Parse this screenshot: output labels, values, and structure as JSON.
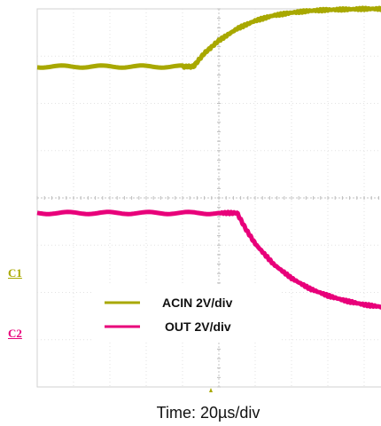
{
  "chart_data": {
    "type": "line",
    "xlabel": "Time: 20µs/div",
    "x_units_per_div": 20,
    "x_unit": "µs",
    "divisions": {
      "x": 10,
      "y": 8
    },
    "grid": true,
    "legend_position": "bottom-center",
    "channels": [
      {
        "id": "C1",
        "color": "#a8a800"
      },
      {
        "id": "C2",
        "color": "#e8007a"
      }
    ],
    "series": [
      {
        "name": "ACIN 2V/div",
        "channel": "C1",
        "color": "#a8a800",
        "volts_per_div": 2,
        "x_div": [
          0,
          1,
          2,
          3,
          4,
          4.3,
          4.6,
          5,
          5.5,
          6,
          6.5,
          7,
          7.5,
          8,
          8.5,
          9,
          9.5,
          10
        ],
        "y_div": [
          0,
          0,
          0,
          0,
          0,
          0.0,
          0.28,
          0.55,
          0.8,
          0.97,
          1.08,
          1.14,
          1.18,
          1.2,
          1.21,
          1.22,
          1.22,
          1.22
        ]
      },
      {
        "name": "OUT 2V/div",
        "channel": "C2",
        "color": "#e8007a",
        "volts_per_div": 2,
        "x_div": [
          0,
          1,
          2,
          3,
          4,
          5,
          5.5,
          5.75,
          6,
          6.5,
          7,
          7.5,
          8,
          8.5,
          9,
          9.5,
          10
        ],
        "y_div": [
          0,
          0,
          0,
          0,
          0,
          0,
          0,
          -0.35,
          -0.65,
          -1.08,
          -1.38,
          -1.6,
          -1.75,
          -1.86,
          -1.94,
          -1.99,
          -2.02
        ]
      }
    ]
  }
}
